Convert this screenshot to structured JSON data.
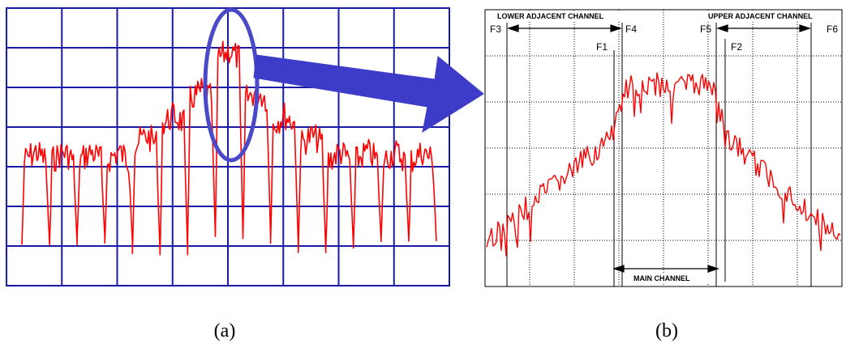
{
  "figure": {
    "panel_a": {
      "caption": "(a)"
    },
    "panel_b": {
      "caption": "(b)",
      "labels": {
        "lower_adjacent": "LOWER ADJACENT CHANNEL",
        "upper_adjacent": "UPPER ADJACENT CHANNEL",
        "main_channel": "MAIN CHANNEL",
        "f1": "F1",
        "f2": "F2",
        "f3": "F3",
        "f4": "F4",
        "f5": "F5",
        "f6": "F6"
      }
    },
    "colors": {
      "panel_a_grid": "#1a1aa8",
      "trace": "#ff0000",
      "highlight_ellipse": "#4a4ac8",
      "arrow": "#3c3cc8",
      "panel_b_frame": "#000000"
    }
  }
}
